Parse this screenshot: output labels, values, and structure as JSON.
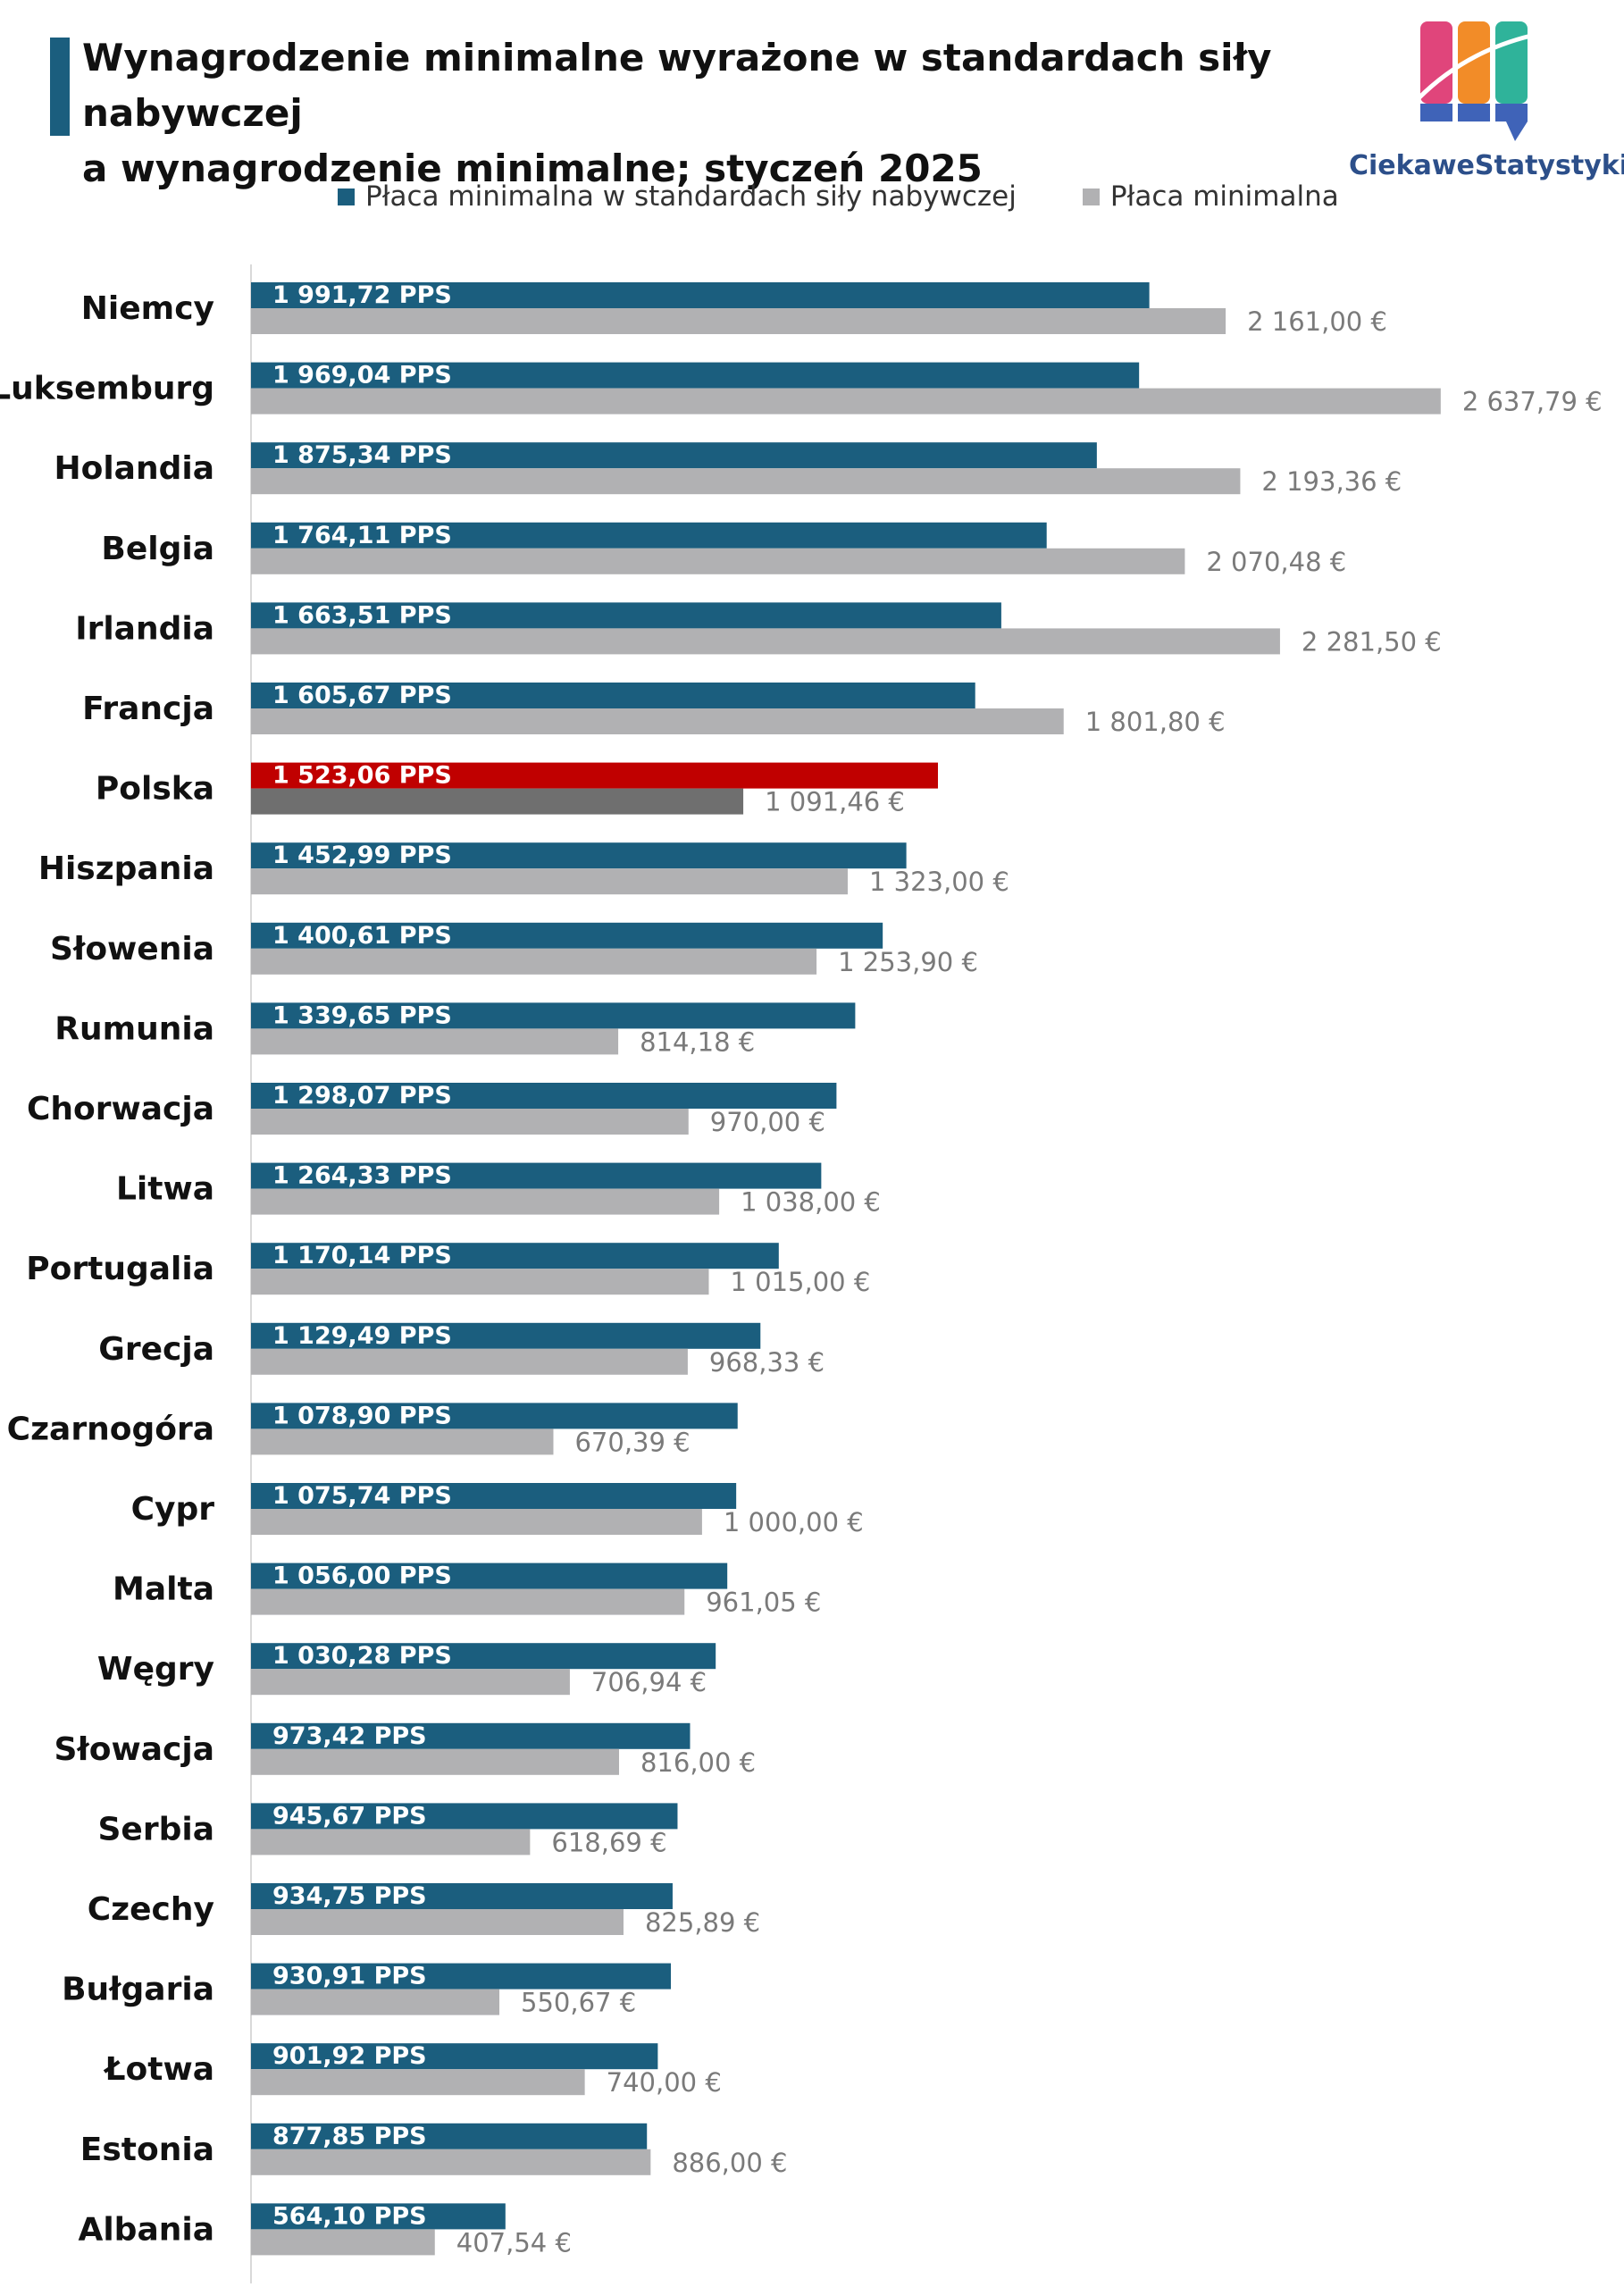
{
  "title": {
    "line1": "Wynagrodzenie minimalne wyrażone w standardach siły nabywczej",
    "line2": "a wynagrodzenie minimalne; styczeń 2025"
  },
  "logo": {
    "text": "CiekaweStatystyki.pl"
  },
  "colors": {
    "pps": "#1b5e7e",
    "eur": "#b1b1b3",
    "highlight_pps": "#c00000",
    "highlight_eur": "#6f6f6f",
    "title_accent": "#1b5e7e"
  },
  "chart_data": {
    "type": "bar",
    "orientation": "horizontal",
    "legend_position": "top",
    "grid": false,
    "highlight_category": "Polska",
    "categories": [
      "Niemcy",
      "Luksemburg",
      "Holandia",
      "Belgia",
      "Irlandia",
      "Francja",
      "Polska",
      "Hiszpania",
      "Słowenia",
      "Rumunia",
      "Chorwacja",
      "Litwa",
      "Portugalia",
      "Grecja",
      "Czarnogóra",
      "Cypr",
      "Malta",
      "Węgry",
      "Słowacja",
      "Serbia",
      "Czechy",
      "Bułgaria",
      "Łotwa",
      "Estonia",
      "Albania"
    ],
    "series": [
      {
        "name": "Płaca minimalna w standardach siły nabywczej",
        "values": [
          1991.72,
          1969.04,
          1875.34,
          1764.11,
          1663.51,
          1605.67,
          1523.06,
          1452.99,
          1400.61,
          1339.65,
          1298.07,
          1264.33,
          1170.14,
          1129.49,
          1078.9,
          1075.74,
          1056.0,
          1030.28,
          973.42,
          945.67,
          934.75,
          930.91,
          901.92,
          877.85,
          564.1
        ],
        "labels": [
          "1 991,72 PPS",
          "1 969,04 PPS",
          "1 875,34 PPS",
          "1 764,11 PPS",
          "1 663,51 PPS",
          "1 605,67 PPS",
          "1 523,06 PPS",
          "1 452,99 PPS",
          "1 400,61 PPS",
          "1 339,65 PPS",
          "1 298,07 PPS",
          "1 264,33 PPS",
          "1 170,14 PPS",
          "1 129,49 PPS",
          "1 078,90 PPS",
          "1 075,74 PPS",
          "1 056,00 PPS",
          "1 030,28 PPS",
          "973,42 PPS",
          "945,67 PPS",
          "934,75 PPS",
          "930,91 PPS",
          "901,92 PPS",
          "877,85 PPS",
          "564,10 PPS"
        ]
      },
      {
        "name": "Płaca minimalna",
        "values": [
          2161.0,
          2637.79,
          2193.36,
          2070.48,
          2281.5,
          1801.8,
          1091.46,
          1323.0,
          1253.9,
          814.18,
          970.0,
          1038.0,
          1015.0,
          968.33,
          670.39,
          1000.0,
          961.05,
          706.94,
          816.0,
          618.69,
          825.89,
          550.67,
          740.0,
          886.0,
          407.54
        ],
        "labels": [
          "2 161,00 €",
          "2 637,79 €",
          "2 193,36 €",
          "2 070,48 €",
          "2 281,50 €",
          "1 801,80 €",
          "1 091,46 €",
          "1 323,00 €",
          "1 253,90 €",
          "814,18 €",
          "970,00 €",
          "1 038,00 €",
          "1 015,00 €",
          "968,33 €",
          "670,39 €",
          "1 000,00 €",
          "961,05 €",
          "706,94 €",
          "816,00 €",
          "618,69 €",
          "825,89 €",
          "550,67 €",
          "740,00 €",
          "886,00 €",
          "407,54 €"
        ]
      }
    ]
  }
}
